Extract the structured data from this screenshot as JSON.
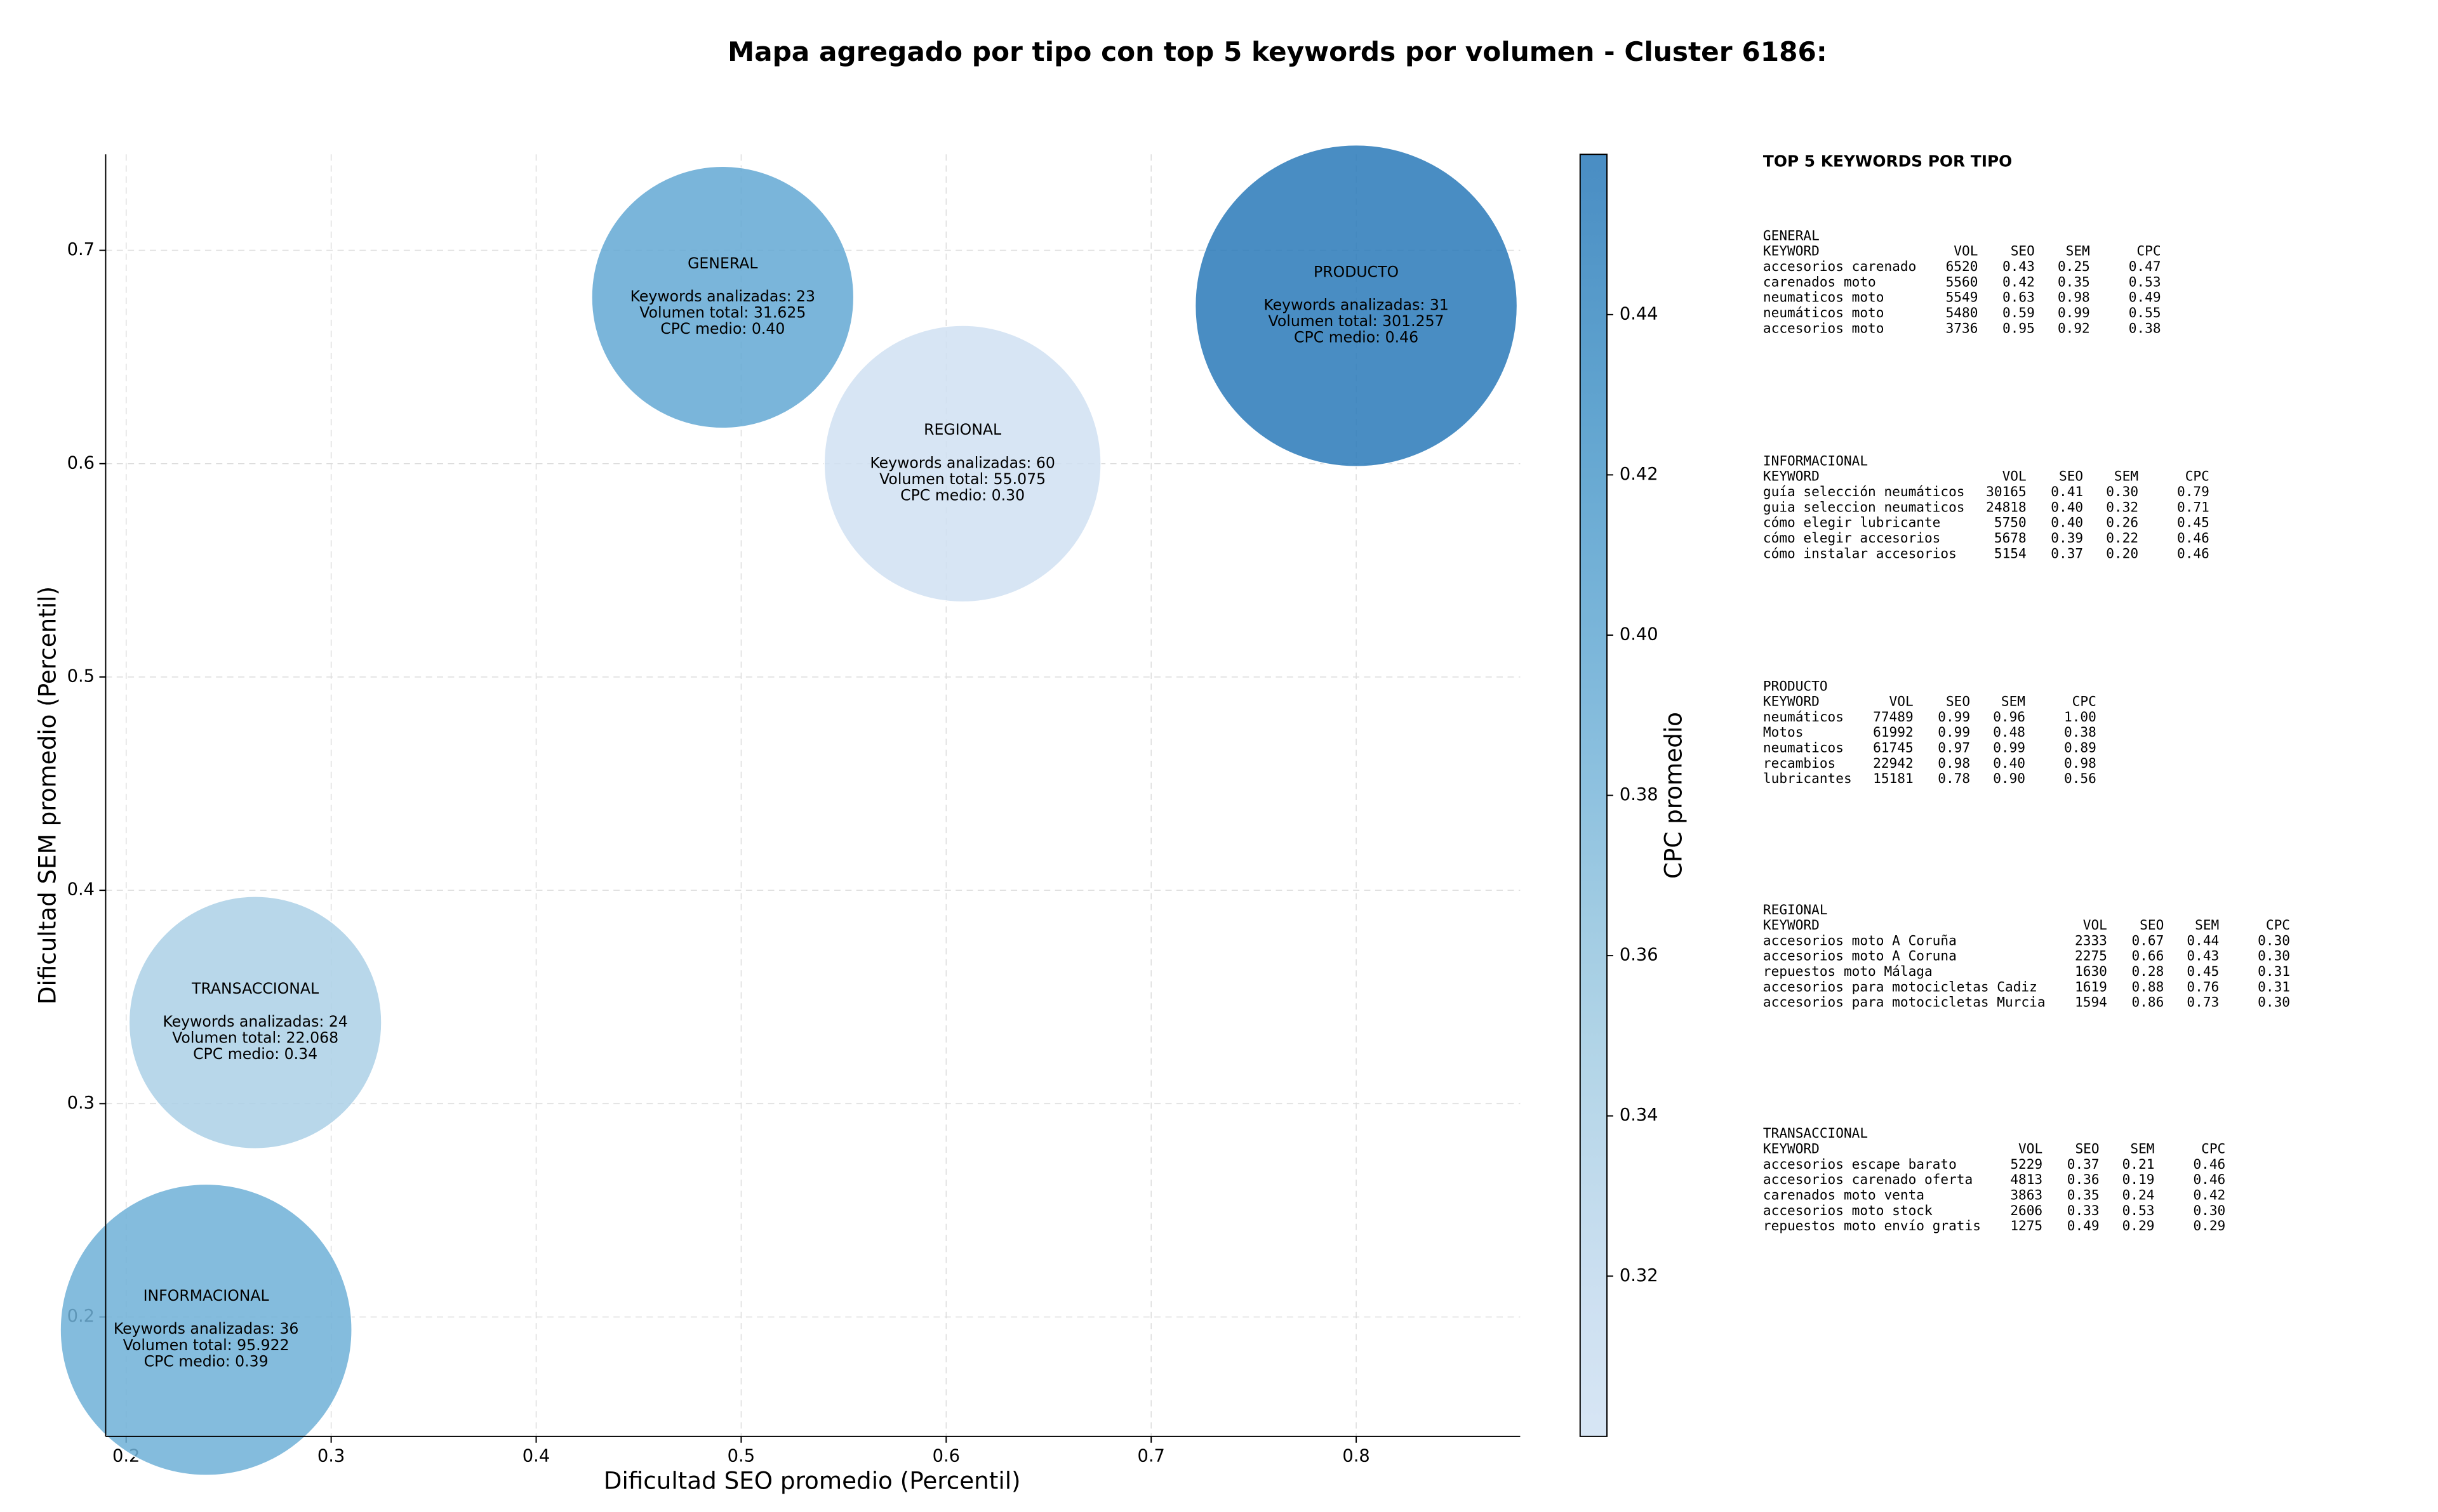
{
  "chart_data": {
    "type": "bubble",
    "title": "Mapa agregado por tipo con top 5 keywords por volumen - Cluster 6186:",
    "xlabel": "Dificultad SEO promedio (Percentil)",
    "ylabel": "Dificultad SEM promedio (Percentil)",
    "colorbar_label": "CPC promedio",
    "colormap": "Blues",
    "grid": true,
    "xlim": [
      0.19,
      0.88
    ],
    "ylim": [
      0.144,
      0.745
    ],
    "clim": [
      0.3,
      0.46
    ],
    "xticks": [
      0.2,
      0.3,
      0.4,
      0.5,
      0.6,
      0.7,
      0.8
    ],
    "yticks": [
      0.2,
      0.3,
      0.4,
      0.5,
      0.6,
      0.7
    ],
    "cticks": [
      0.32,
      0.34,
      0.36,
      0.38,
      {
        "value": 0.4,
        "label": "0.40"
      },
      0.42,
      0.44
    ],
    "points": [
      {
        "name": "GENERAL",
        "x": 0.491,
        "y": 0.678,
        "size": 31625,
        "cpc": 0.4,
        "lines": [
          "Keywords analizadas: 23",
          "Volumen total: 31.625",
          "CPC medio: 0.40"
        ]
      },
      {
        "name": "REGIONAL",
        "x": 0.608,
        "y": 0.6,
        "size": 55075,
        "cpc": 0.3,
        "lines": [
          "Keywords analizadas: 60",
          "Volumen total: 55.075",
          "CPC medio: 0.30"
        ]
      },
      {
        "name": "PRODUCTO",
        "x": 0.8,
        "y": 0.674,
        "size": 301257,
        "cpc": 0.46,
        "lines": [
          "Keywords analizadas: 31",
          "Volumen total: 301.257",
          "CPC medio: 0.46"
        ]
      },
      {
        "name": "TRANSACCIONAL",
        "x": 0.263,
        "y": 0.338,
        "size": 22068,
        "cpc": 0.34,
        "lines": [
          "Keywords analizadas: 24",
          "Volumen total: 22.068",
          "CPC medio: 0.34"
        ]
      },
      {
        "name": "INFORMACIONAL",
        "x": 0.239,
        "y": 0.194,
        "size": 95922,
        "cpc": 0.39,
        "lines": [
          "Keywords analizadas: 36",
          "Volumen total: 95.922",
          "CPC medio: 0.39"
        ]
      }
    ]
  },
  "keyword_panel": {
    "title": "TOP 5 KEYWORDS POR TIPO",
    "columns": [
      "KEYWORD",
      "VOL",
      "SEO",
      "SEM",
      "CPC"
    ],
    "groups": [
      {
        "name": "GENERAL",
        "rows": [
          [
            "accesorios carenado",
            "6520",
            "0.43",
            "0.25",
            "0.47"
          ],
          [
            "carenados moto",
            "5560",
            "0.42",
            "0.35",
            "0.53"
          ],
          [
            "neumaticos moto",
            "5549",
            "0.63",
            "0.98",
            "0.49"
          ],
          [
            "neumáticos moto",
            "5480",
            "0.59",
            "0.99",
            "0.55"
          ],
          [
            "accesorios moto",
            "3736",
            "0.95",
            "0.92",
            "0.38"
          ]
        ]
      },
      {
        "name": "INFORMACIONAL",
        "rows": [
          [
            "guía selección neumáticos",
            "30165",
            "0.41",
            "0.30",
            "0.79"
          ],
          [
            "guia seleccion neumaticos",
            "24818",
            "0.40",
            "0.32",
            "0.71"
          ],
          [
            "cómo elegir lubricante",
            "5750",
            "0.40",
            "0.26",
            "0.45"
          ],
          [
            "cómo elegir accesorios",
            "5678",
            "0.39",
            "0.22",
            "0.46"
          ],
          [
            "cómo instalar accesorios",
            "5154",
            "0.37",
            "0.20",
            "0.46"
          ]
        ]
      },
      {
        "name": "PRODUCTO",
        "rows": [
          [
            "neumáticos",
            "77489",
            "0.99",
            "0.96",
            "1.00"
          ],
          [
            "Motos",
            "61992",
            "0.99",
            "0.48",
            "0.38"
          ],
          [
            "neumaticos",
            "61745",
            "0.97",
            "0.99",
            "0.89"
          ],
          [
            "recambios",
            "22942",
            "0.98",
            "0.40",
            "0.98"
          ],
          [
            "lubricantes",
            "15181",
            "0.78",
            "0.90",
            "0.56"
          ]
        ]
      },
      {
        "name": "REGIONAL",
        "rows": [
          [
            "accesorios moto A Coruña",
            "2333",
            "0.67",
            "0.44",
            "0.30"
          ],
          [
            "accesorios moto A Coruna",
            "2275",
            "0.66",
            "0.43",
            "0.30"
          ],
          [
            "repuestos moto Málaga",
            "1630",
            "0.28",
            "0.45",
            "0.31"
          ],
          [
            "accesorios para motocicletas Cadiz",
            "1619",
            "0.88",
            "0.76",
            "0.31"
          ],
          [
            "accesorios para motocicletas Murcia",
            "1594",
            "0.86",
            "0.73",
            "0.30"
          ]
        ]
      },
      {
        "name": "TRANSACCIONAL",
        "rows": [
          [
            "accesorios escape barato",
            "5229",
            "0.37",
            "0.21",
            "0.46"
          ],
          [
            "accesorios carenado oferta",
            "4813",
            "0.36",
            "0.19",
            "0.46"
          ],
          [
            "carenados moto venta",
            "3863",
            "0.35",
            "0.24",
            "0.42"
          ],
          [
            "accesorios moto stock",
            "2606",
            "0.33",
            "0.53",
            "0.30"
          ],
          [
            "repuestos moto envío gratis",
            "1275",
            "0.49",
            "0.29",
            "0.29"
          ]
        ]
      }
    ]
  }
}
